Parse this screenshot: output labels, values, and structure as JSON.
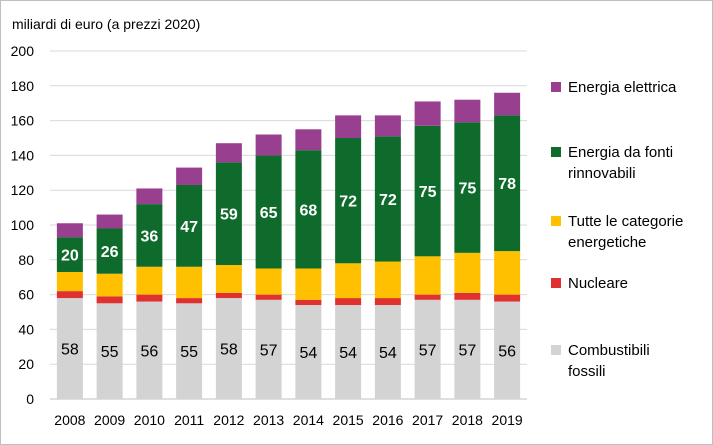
{
  "chart_data": {
    "type": "bar",
    "stacked": true,
    "ylabel": "miliardi di euro (a prezzi 2020)",
    "ylim": [
      0,
      200
    ],
    "yticks": [
      0,
      20,
      40,
      60,
      80,
      100,
      120,
      140,
      160,
      180,
      200
    ],
    "grid": true,
    "legend_position": "right",
    "categories": [
      "2008",
      "2009",
      "2010",
      "2011",
      "2012",
      "2013",
      "2014",
      "2015",
      "2016",
      "2017",
      "2018",
      "2019"
    ],
    "series": [
      {
        "name": "Combustibili fossili",
        "color": "#d3d3d3",
        "values": [
          58,
          55,
          56,
          55,
          58,
          57,
          54,
          54,
          54,
          57,
          57,
          56
        ],
        "label_values": [
          "58",
          "55",
          "56",
          "55",
          "58",
          "57",
          "54",
          "54",
          "54",
          "57",
          "57",
          "56"
        ]
      },
      {
        "name": "Nucleare",
        "color": "#e03131",
        "values": [
          4,
          4,
          4,
          3,
          3,
          3,
          3,
          4,
          4,
          3,
          4,
          4
        ]
      },
      {
        "name": "Tutte le categorie energetiche",
        "color": "#ffc000",
        "values": [
          11,
          13,
          16,
          18,
          16,
          15,
          18,
          20,
          21,
          22,
          23,
          25
        ]
      },
      {
        "name": "Energia da fonti rinnovabili",
        "color": "#0e6b2b",
        "values": [
          20,
          26,
          36,
          47,
          59,
          65,
          68,
          72,
          72,
          75,
          75,
          78
        ],
        "label_values": [
          "20",
          "26",
          "36",
          "47",
          "59",
          "65",
          "68",
          "72",
          "72",
          "75",
          "75",
          "78"
        ]
      },
      {
        "name": "Energia elettrica",
        "color": "#993f8f",
        "values": [
          8,
          8,
          9,
          10,
          11,
          12,
          12,
          13,
          12,
          14,
          13,
          13
        ]
      }
    ],
    "legend_order": [
      "Energia elettrica",
      "Energia da fonti rinnovabili",
      "Tutte le categorie energetiche",
      "Nucleare",
      "Combustibili fossili"
    ],
    "legend_labels": {
      "Energia elettrica": [
        "Energia elettrica"
      ],
      "Energia da fonti rinnovabili": [
        "Energia da fonti",
        "rinnovabili"
      ],
      "Tutte le categorie energetiche": [
        "Tutte le categorie",
        "energetiche"
      ],
      "Nucleare": [
        "Nucleare"
      ],
      "Combustibili fossili": [
        "Combustibili",
        "fossili"
      ]
    }
  }
}
